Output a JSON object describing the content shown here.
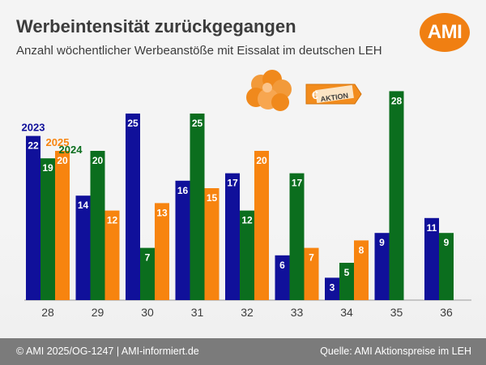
{
  "header": {
    "title": "Werbeintensität zurückgegangen",
    "subtitle": "Anzahl wöchentlicher Werbeanstöße mit Eissalat im deutschen LEH",
    "logo_text": "AMI",
    "badge_text": "AKTION",
    "badge_currency": "€"
  },
  "footer": {
    "left": "© AMI 2025/OG-1247 | AMI-informiert.de",
    "right": "Quelle: AMI Aktionspreise im LEH"
  },
  "colors": {
    "s2023": "#10109a",
    "s2024": "#0b6e1e",
    "s2025": "#f7840f",
    "accent": "#f07f12",
    "footer": "#7b7b7b"
  },
  "icons": [
    "lettuce-icon",
    "price-tag-icon"
  ],
  "chart_data": {
    "type": "bar",
    "title": "Werbeintensität zurückgegangen",
    "subtitle": "Anzahl wöchentlicher Werbeanstöße mit Eissalat im deutschen LEH",
    "xlabel": "",
    "ylabel": "",
    "categories": [
      "28",
      "29",
      "30",
      "31",
      "32",
      "33",
      "34",
      "35",
      "36"
    ],
    "series": [
      {
        "name": "2023",
        "values": [
          22,
          14,
          25,
          16,
          17,
          6,
          3,
          9,
          11
        ]
      },
      {
        "name": "2024",
        "values": [
          19,
          20,
          7,
          25,
          12,
          17,
          5,
          28,
          9
        ]
      },
      {
        "name": "2025",
        "values": [
          20,
          12,
          13,
          15,
          20,
          7,
          8,
          null,
          null
        ]
      }
    ],
    "ylim": [
      0,
      28
    ],
    "grid": false,
    "legend": "inline labels above first bars",
    "data_labels": true
  }
}
